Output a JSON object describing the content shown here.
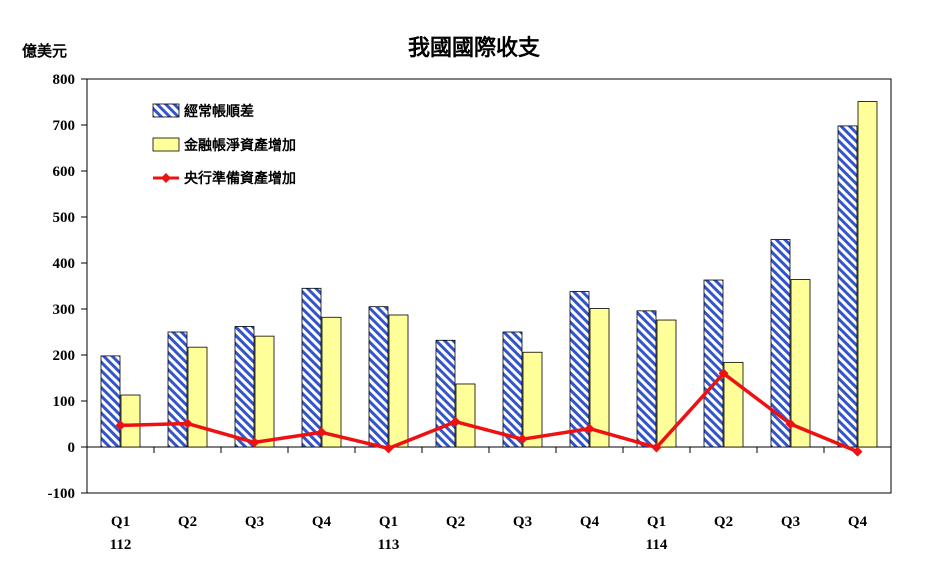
{
  "chart_data": {
    "type": "bar",
    "title": "我國國際收支",
    "ylabel": "億美元",
    "ylim": [
      -100,
      800
    ],
    "yticks": [
      -100,
      0,
      100,
      200,
      300,
      400,
      500,
      600,
      700,
      800
    ],
    "categories": [
      "Q1",
      "Q2",
      "Q3",
      "Q4",
      "Q1",
      "Q2",
      "Q3",
      "Q4",
      "Q1",
      "Q2",
      "Q3",
      "Q4"
    ],
    "year_labels": [
      {
        "index": 0,
        "label": "112"
      },
      {
        "index": 4,
        "label": "113"
      },
      {
        "index": 8,
        "label": "114"
      }
    ],
    "legend_position": "top-left",
    "grid": false,
    "series": [
      {
        "name": "經常帳順差",
        "kind": "bar",
        "pattern": "diagonal-hatch",
        "color": "#3355cc",
        "values": [
          198,
          250,
          262,
          345,
          305,
          232,
          250,
          338,
          296,
          363,
          451,
          698
        ]
      },
      {
        "name": "金融帳淨資產增加",
        "kind": "bar",
        "color": "#ffff99",
        "values": [
          113,
          217,
          241,
          282,
          287,
          137,
          206,
          301,
          276,
          184,
          364,
          751
        ]
      },
      {
        "name": "央行準備資產增加",
        "kind": "line",
        "color": "#ee1111",
        "values": [
          47,
          51,
          10,
          32,
          -3,
          55,
          17,
          40,
          -1,
          160,
          50,
          -10
        ]
      }
    ]
  }
}
